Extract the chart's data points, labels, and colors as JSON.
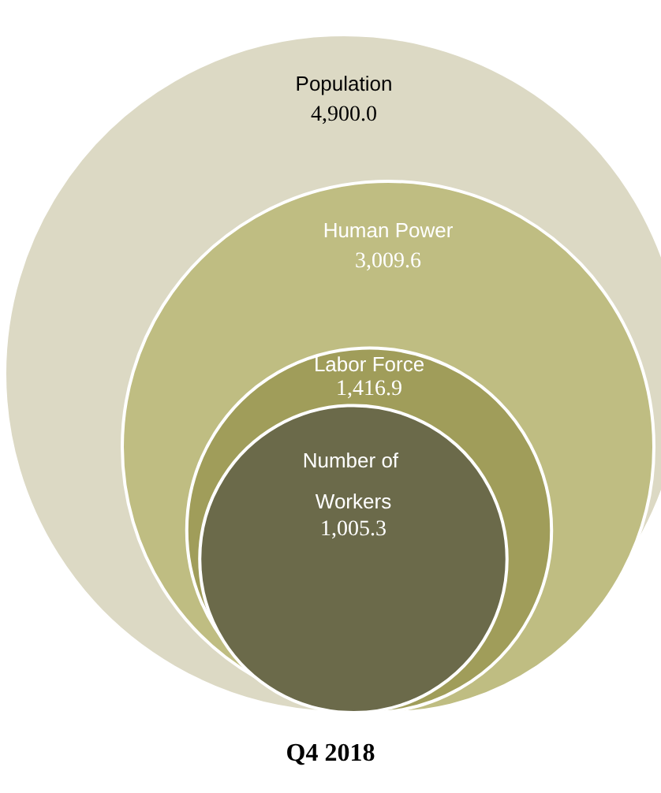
{
  "chart_data": {
    "type": "other",
    "title": "Q4 2018",
    "categories": [
      "Population",
      "Human Power",
      "Labor Force",
      "Number of Workers"
    ],
    "values": [
      4900.0,
      3009.6,
      1416.9,
      1005.3
    ],
    "value_labels": [
      "4,900.0",
      "3,009.6",
      "1,416.9",
      "1,005.3"
    ],
    "colors": [
      "#dcd9c4",
      "#bfbd82",
      "#a09d5a",
      "#6b6a4a"
    ]
  }
}
